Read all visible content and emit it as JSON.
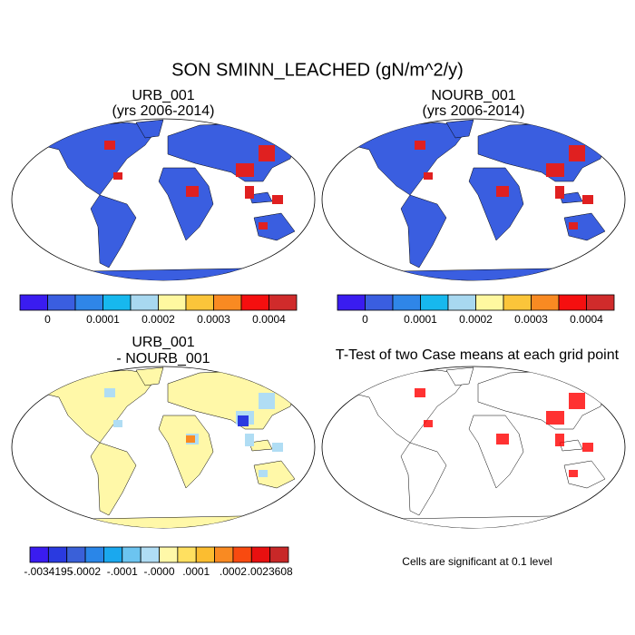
{
  "title": "SON SMINN_LEACHED (gN/m^2/y)",
  "panels": [
    {
      "title": [
        "URB_001",
        "(yrs 2006-2014)"
      ],
      "colorbar": {
        "colors": [
          "#3a1cf0",
          "#3a5ee0",
          "#2f86e8",
          "#17b8ee",
          "#a8d8f0",
          "#fff8a0",
          "#fbc53a",
          "#f98a22",
          "#f50f0f",
          "#d02b2b"
        ],
        "labels": [
          0,
          0.0001,
          0.0002,
          0.0003,
          0.0004
        ]
      }
    },
    {
      "title": [
        "NOURB_001",
        "(yrs 2006-2014)"
      ],
      "colorbar": {
        "colors": [
          "#3a1cf0",
          "#3a5ee0",
          "#2f86e8",
          "#17b8ee",
          "#a8d8f0",
          "#fff8a0",
          "#fbc53a",
          "#f98a22",
          "#f50f0f",
          "#d02b2b"
        ],
        "labels": [
          0,
          0.0001,
          0.0002,
          0.0003,
          0.0004
        ]
      }
    },
    {
      "title": [
        "URB_001",
        "- NOURB_001"
      ],
      "colorbar": {
        "colors": [
          "#3a1cf0",
          "#2a3ae0",
          "#3a60d8",
          "#2a86e8",
          "#1aa8ee",
          "#6cc4f0",
          "#b0ddf4",
          "#fff8a8",
          "#ffe060",
          "#fbbd30",
          "#f98a22",
          "#f84a10",
          "#e81010",
          "#c82828"
        ],
        "labels": [
          {
            "value": -0.0034195,
            "label": "-.0034195"
          },
          {
            "value": -0.0002,
            "label": "-.0002"
          },
          {
            "value": -0.0001,
            "label": "-.0001"
          },
          {
            "value": 0,
            "label": "-.0000"
          },
          {
            "value": 0.0001,
            "label": ".0001"
          },
          {
            "value": 0.0002,
            "label": ".0002"
          },
          {
            "value": 0.0023608,
            "label": ".0023608"
          }
        ]
      }
    },
    {
      "title": [
        "T-Test of two Case means at each grid point"
      ],
      "note": "Cells are significant at 0.1 level"
    }
  ]
}
